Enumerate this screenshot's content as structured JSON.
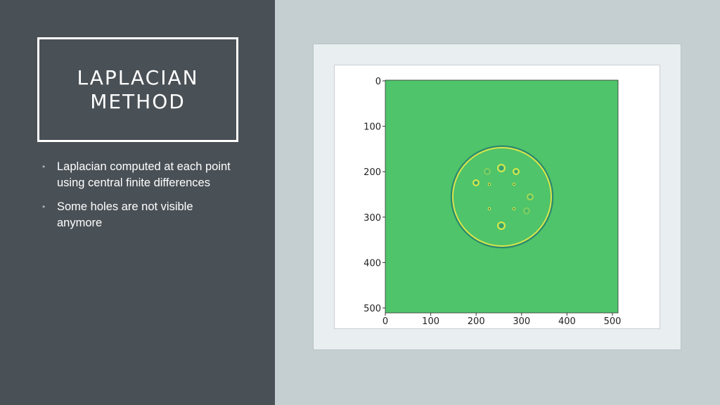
{
  "slide": {
    "title_line1": "LAPLACIAN",
    "title_line2": "METHOD",
    "bullets": [
      "Laplacian computed at each point using central finite differences",
      "Some holes are not visible anymore"
    ]
  },
  "figure": {
    "x_ticks": [
      "0",
      "100",
      "200",
      "300",
      "400",
      "500"
    ],
    "y_ticks": [
      "0",
      "100",
      "200",
      "300",
      "400",
      "500"
    ],
    "colors": {
      "background": "#4fc46a",
      "edge_bright": "#d8e64a",
      "edge_dark": "#2a8a6f"
    }
  }
}
